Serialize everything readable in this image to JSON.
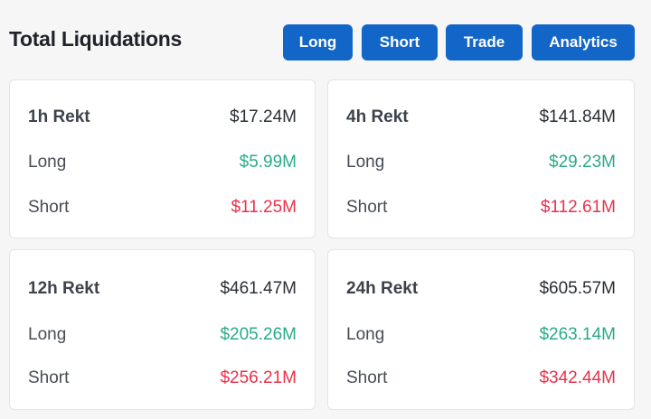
{
  "header": {
    "title": "Total Liquidations",
    "buttons": {
      "long": "Long",
      "short": "Short",
      "trade": "Trade",
      "analytics": "Analytics"
    }
  },
  "colors": {
    "accent": "#1266c8",
    "long": "#2aaa8a",
    "short": "#e8324a"
  },
  "cards": [
    {
      "label": "1h Rekt",
      "total": "$17.24M",
      "long_label": "Long",
      "long": "$5.99M",
      "short_label": "Short",
      "short": "$11.25M"
    },
    {
      "label": "4h Rekt",
      "total": "$141.84M",
      "long_label": "Long",
      "long": "$29.23M",
      "short_label": "Short",
      "short": "$112.61M"
    },
    {
      "label": "12h Rekt",
      "total": "$461.47M",
      "long_label": "Long",
      "long": "$205.26M",
      "short_label": "Short",
      "short": "$256.21M"
    },
    {
      "label": "24h Rekt",
      "total": "$605.57M",
      "long_label": "Long",
      "long": "$263.14M",
      "short_label": "Short",
      "short": "$342.44M"
    }
  ]
}
